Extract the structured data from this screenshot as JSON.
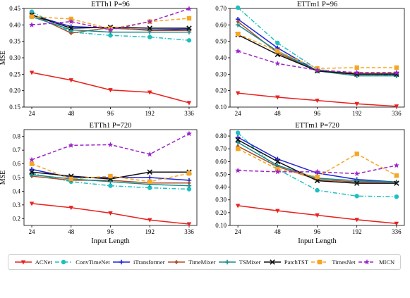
{
  "chart_data": [
    {
      "type": "line",
      "title": "ETTh1 P=96",
      "xlabel": "",
      "ylabel": "MSE",
      "categories": [
        "24",
        "48",
        "96",
        "192",
        "336"
      ],
      "ylim": [
        0.15,
        0.45
      ],
      "yticks": [
        "0.15",
        "0.20",
        "0.25",
        "0.30",
        "0.35",
        "0.40",
        "0.45"
      ],
      "series": [
        {
          "name": "ACNet",
          "values": [
            0.255,
            0.232,
            0.202,
            0.195,
            0.163
          ]
        },
        {
          "name": "ConvTimeNet",
          "values": [
            0.44,
            0.378,
            0.368,
            0.363,
            0.353
          ]
        },
        {
          "name": "iTransformer",
          "values": [
            0.43,
            0.395,
            0.39,
            0.385,
            0.387
          ]
        },
        {
          "name": "TimeMixer",
          "values": [
            0.432,
            0.375,
            0.392,
            0.383,
            0.383
          ]
        },
        {
          "name": "TSMixer",
          "values": [
            0.425,
            0.385,
            0.378,
            0.378,
            0.378
          ]
        },
        {
          "name": "PatchTST",
          "values": [
            0.43,
            0.39,
            0.393,
            0.39,
            0.39
          ]
        },
        {
          "name": "TimesNet",
          "values": [
            0.425,
            0.418,
            0.388,
            0.41,
            0.42
          ]
        },
        {
          "name": "MICN",
          "values": [
            0.4,
            0.41,
            0.385,
            0.41,
            0.449
          ]
        }
      ]
    },
    {
      "type": "line",
      "title": "ETTm1 P=96",
      "xlabel": "",
      "ylabel": "",
      "categories": [
        "24",
        "48",
        "96",
        "192",
        "336"
      ],
      "ylim": [
        0.1,
        0.7
      ],
      "yticks": [
        "0.10",
        "0.20",
        "0.30",
        "0.40",
        "0.50",
        "0.60",
        "0.70"
      ],
      "series": [
        {
          "name": "ACNet",
          "values": [
            0.185,
            0.16,
            0.14,
            0.12,
            0.105
          ]
        },
        {
          "name": "ConvTimeNet",
          "values": [
            0.705,
            0.49,
            0.33,
            0.3,
            0.295
          ]
        },
        {
          "name": "iTransformer",
          "values": [
            0.635,
            0.46,
            0.32,
            0.3,
            0.3
          ]
        },
        {
          "name": "TimeMixer",
          "values": [
            0.62,
            0.43,
            0.32,
            0.305,
            0.305
          ]
        },
        {
          "name": "TSMixer",
          "values": [
            0.6,
            0.44,
            0.32,
            0.29,
            0.29
          ]
        },
        {
          "name": "PatchTST",
          "values": [
            0.54,
            0.42,
            0.32,
            0.3,
            0.3
          ]
        },
        {
          "name": "TimesNet",
          "values": [
            0.545,
            0.44,
            0.335,
            0.34,
            0.34
          ]
        },
        {
          "name": "MICN",
          "values": [
            0.44,
            0.365,
            0.325,
            0.31,
            0.31
          ]
        }
      ]
    },
    {
      "type": "line",
      "title": "ETTh1 P=720",
      "xlabel": "Input Length",
      "ylabel": "MSE",
      "categories": [
        "24",
        "48",
        "96",
        "192",
        "336"
      ],
      "ylim": [
        0.15,
        0.85
      ],
      "yticks": [
        "0.2",
        "0.3",
        "0.4",
        "0.5",
        "0.6",
        "0.7",
        "0.8"
      ],
      "series": [
        {
          "name": "ACNet",
          "values": [
            0.31,
            0.28,
            0.24,
            0.19,
            0.16
          ]
        },
        {
          "name": "ConvTimeNet",
          "values": [
            0.53,
            0.47,
            0.44,
            0.425,
            0.415
          ]
        },
        {
          "name": "iTransformer",
          "values": [
            0.56,
            0.5,
            0.5,
            0.5,
            0.48
          ]
        },
        {
          "name": "TimeMixer",
          "values": [
            0.51,
            0.48,
            0.48,
            0.46,
            0.46
          ]
        },
        {
          "name": "TSMixer",
          "values": [
            0.52,
            0.49,
            0.47,
            0.45,
            0.44
          ]
        },
        {
          "name": "PatchTST",
          "values": [
            0.54,
            0.51,
            0.49,
            0.54,
            0.54
          ]
        },
        {
          "name": "TimesNet",
          "values": [
            0.6,
            0.49,
            0.51,
            0.47,
            0.53
          ]
        },
        {
          "name": "MICN",
          "values": [
            0.63,
            0.735,
            0.74,
            0.67,
            0.82
          ]
        }
      ]
    },
    {
      "type": "line",
      "title": "ETTm1 P=720",
      "xlabel": "Input Length",
      "ylabel": "",
      "categories": [
        "24",
        "48",
        "96",
        "192",
        "336"
      ],
      "ylim": [
        0.1,
        0.85
      ],
      "yticks": [
        "0.10",
        "0.20",
        "0.30",
        "0.40",
        "0.50",
        "0.60",
        "0.70",
        "0.80"
      ],
      "series": [
        {
          "name": "ACNet",
          "values": [
            0.255,
            0.215,
            0.18,
            0.145,
            0.115
          ]
        },
        {
          "name": "ConvTimeNet",
          "values": [
            0.825,
            0.54,
            0.375,
            0.33,
            0.325
          ]
        },
        {
          "name": "iTransformer",
          "values": [
            0.79,
            0.62,
            0.51,
            0.46,
            0.44
          ]
        },
        {
          "name": "TimeMixer",
          "values": [
            0.72,
            0.56,
            0.46,
            0.44,
            0.44
          ]
        },
        {
          "name": "TSMixer",
          "values": [
            0.75,
            0.57,
            0.47,
            0.45,
            0.44
          ]
        },
        {
          "name": "PatchTST",
          "values": [
            0.77,
            0.6,
            0.45,
            0.43,
            0.43
          ]
        },
        {
          "name": "TimesNet",
          "values": [
            0.7,
            0.54,
            0.48,
            0.66,
            0.49
          ]
        },
        {
          "name": "MICN",
          "values": [
            0.53,
            0.52,
            0.52,
            0.505,
            0.57
          ]
        }
      ]
    }
  ],
  "legend": [
    {
      "name": "ACNet",
      "color": "#e8211d",
      "marker": "triangle-down-icon",
      "dash": "solid"
    },
    {
      "name": "ConvTimeNet",
      "color": "#1fbfbf",
      "marker": "circle-icon",
      "dash": "dashdot"
    },
    {
      "name": "iTransformer",
      "color": "#1f24d6",
      "marker": "plus-icon",
      "dash": "solid"
    },
    {
      "name": "TimeMixer",
      "color": "#a8502c",
      "marker": "diamond-icon",
      "dash": "solid"
    },
    {
      "name": "TSMixer",
      "color": "#1a8a8a",
      "marker": "plus-icon",
      "dash": "solid"
    },
    {
      "name": "PatchTST",
      "color": "#111111",
      "marker": "x-icon",
      "dash": "solid"
    },
    {
      "name": "TimesNet",
      "color": "#f5a623",
      "marker": "square-icon",
      "dash": "dashed"
    },
    {
      "name": "MICN",
      "color": "#9b24c9",
      "marker": "star-icon",
      "dash": "dashed"
    }
  ]
}
